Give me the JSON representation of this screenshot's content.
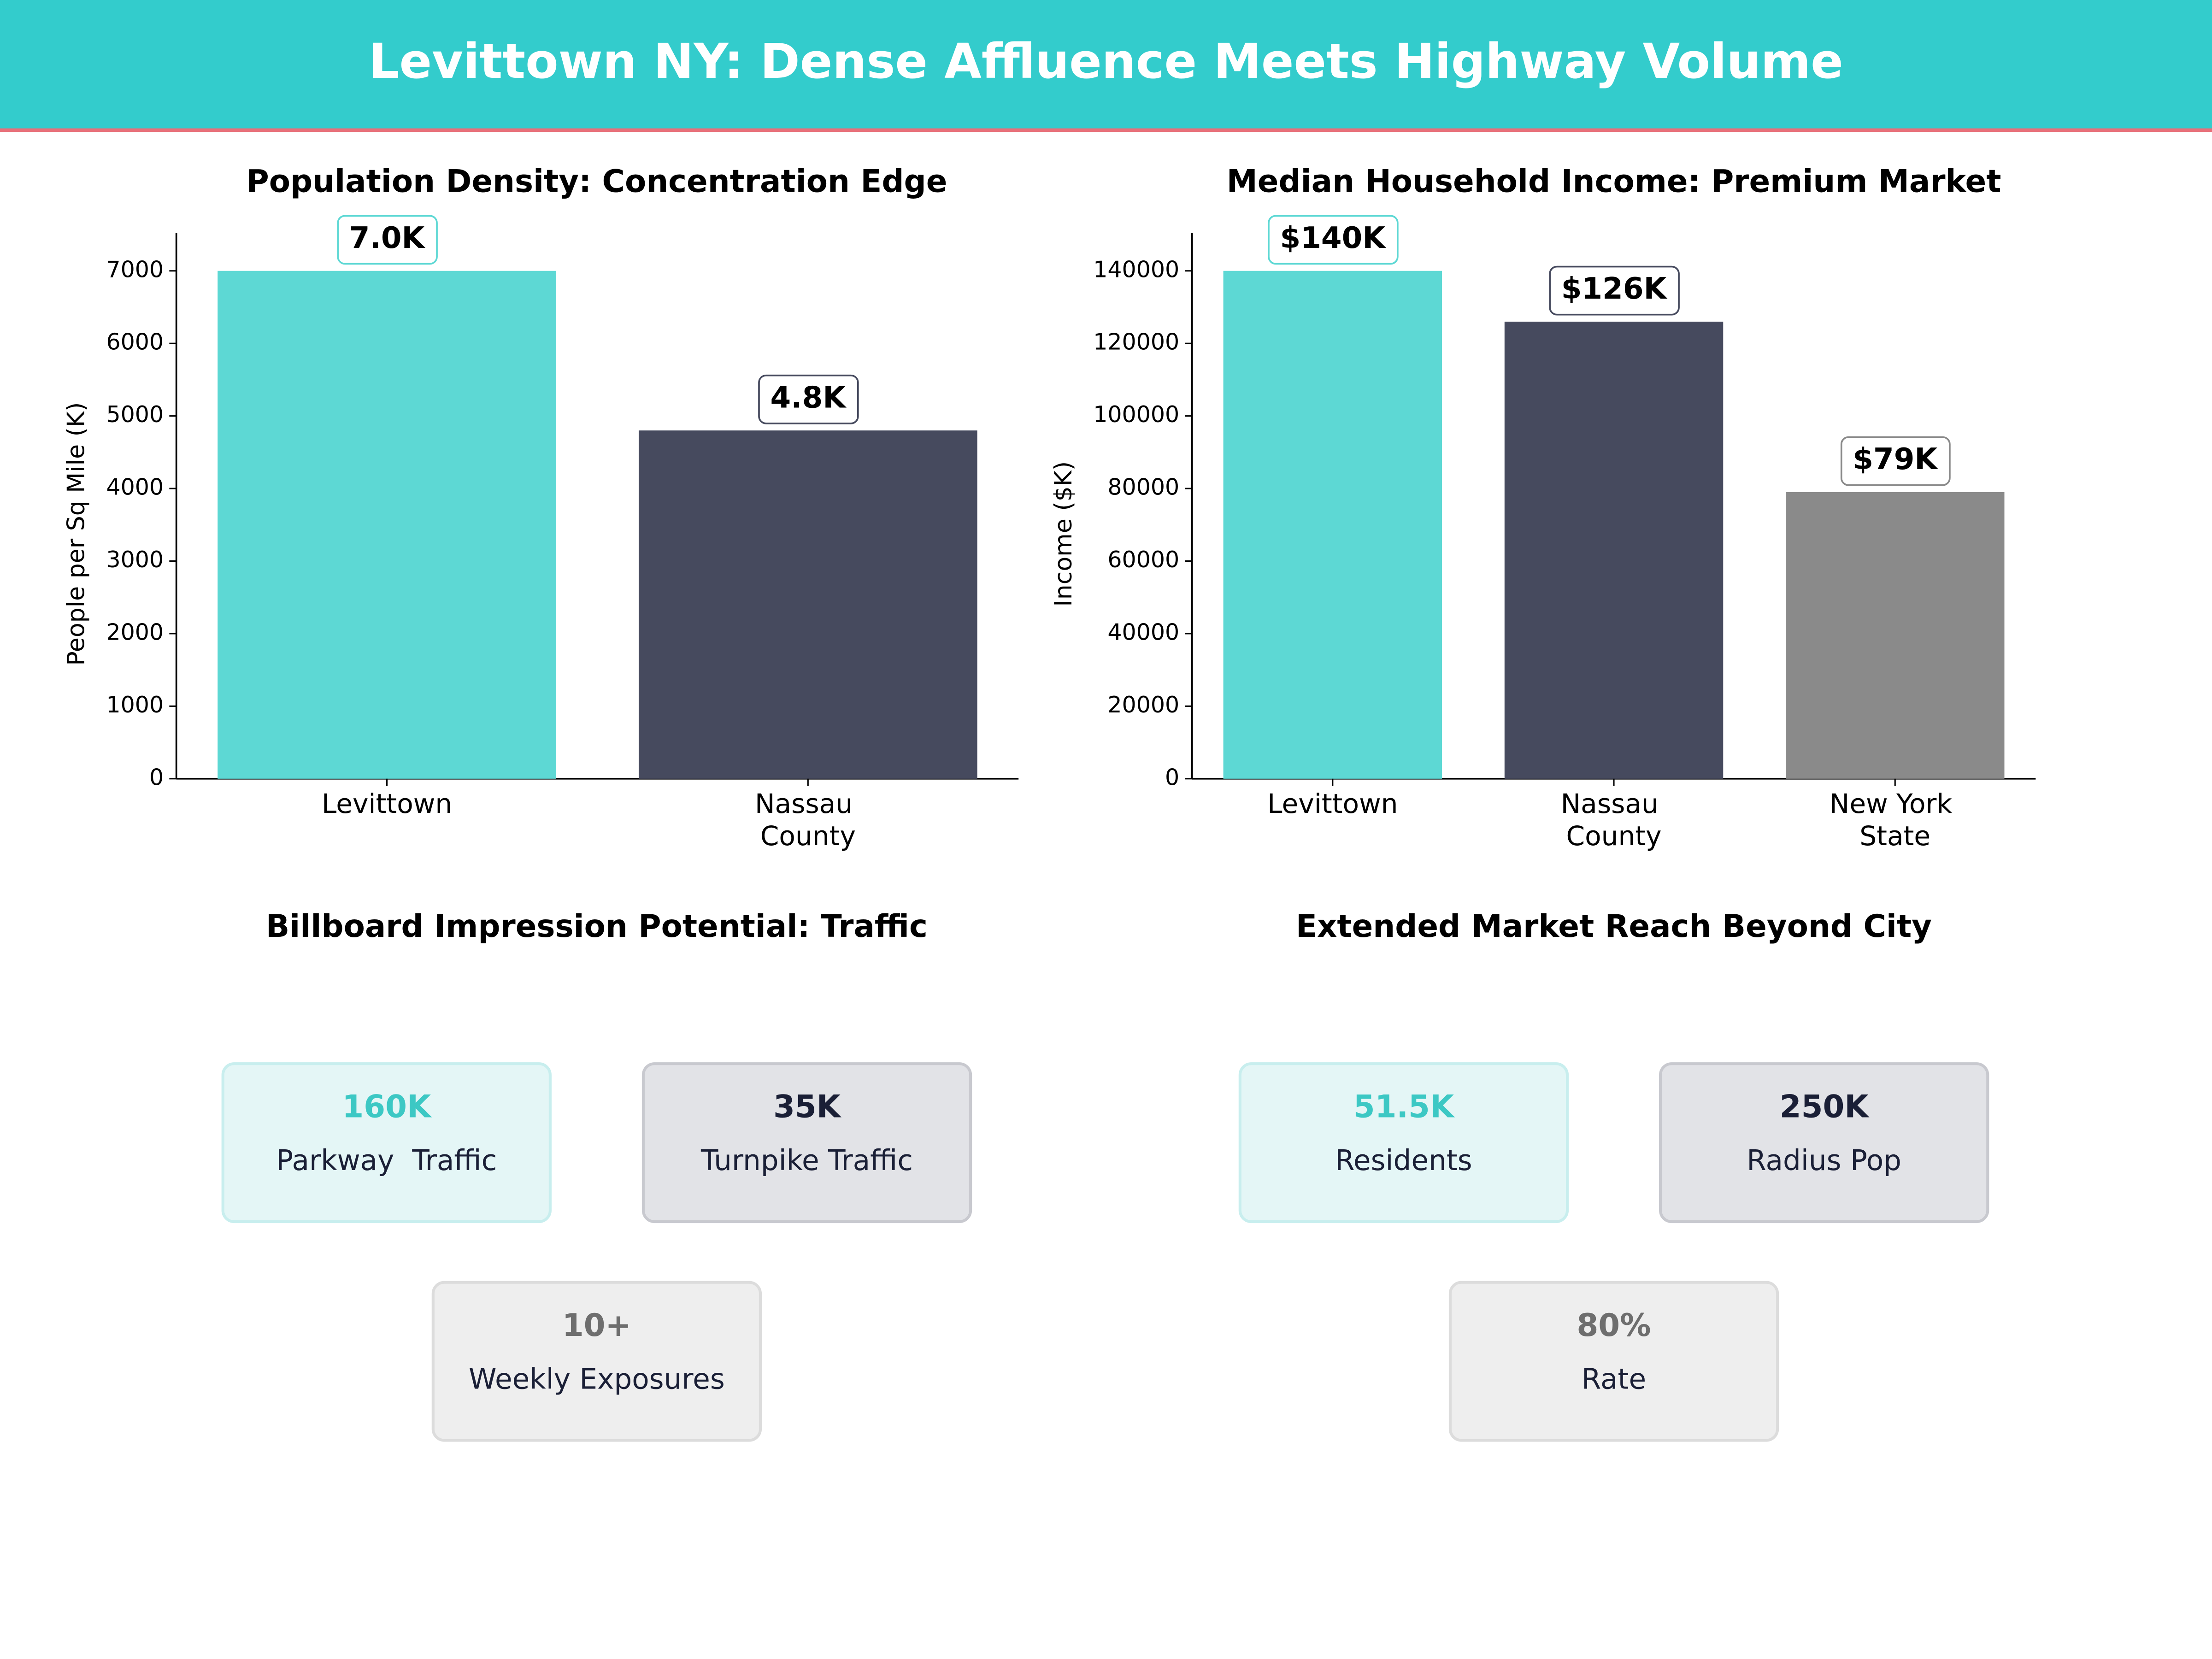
{
  "title": "Levittown NY: Dense Affluence Meets Highway Volume",
  "chart_data": [
    {
      "type": "bar",
      "title": "Population Density: Concentration Edge",
      "y_label": "People per Sq Mile (K)",
      "categories": [
        "Levittown",
        "Nassau\nCounty"
      ],
      "values": [
        7000,
        4800
      ],
      "value_labels": [
        "7.0K",
        "4.8K"
      ],
      "colors": [
        "#5dd8d4",
        "#464a5e"
      ],
      "ylim": [
        0,
        7525
      ],
      "yticks": [
        0,
        1000,
        2000,
        3000,
        4000,
        5000,
        6000,
        7000
      ]
    },
    {
      "type": "bar",
      "title": "Median Household Income: Premium Market",
      "y_label": "Income ($K)",
      "categories": [
        "Levittown",
        "Nassau\nCounty",
        "New York\nState"
      ],
      "values": [
        140000,
        126000,
        79000
      ],
      "value_labels": [
        "$140K",
        "$126K",
        "$79K"
      ],
      "colors": [
        "#5dd8d4",
        "#464a5e",
        "#8a8a8a"
      ],
      "ylim": [
        0,
        150500
      ],
      "yticks": [
        0,
        20000,
        40000,
        60000,
        80000,
        100000,
        120000,
        140000
      ]
    },
    {
      "type": "cards",
      "title": "Billboard Impression Potential: Traffic",
      "cards": [
        {
          "value": "160K",
          "label": "Parkway  Traffic",
          "color": "#3cc8c4"
        },
        {
          "value": "35K",
          "label": "Turnpike Traffic",
          "color": "#1a1f36"
        },
        {
          "value": "10+",
          "label": "Weekly Exposures",
          "color": "#6e6e6e"
        }
      ]
    },
    {
      "type": "cards",
      "title": "Extended Market Reach Beyond City",
      "cards": [
        {
          "value": "51.5K",
          "label": "Residents",
          "color": "#3cc8c4"
        },
        {
          "value": "250K",
          "label": "Radius Pop",
          "color": "#1a1f36"
        },
        {
          "value": "80%",
          "label": "Rate",
          "color": "#6e6e6e"
        }
      ]
    }
  ]
}
